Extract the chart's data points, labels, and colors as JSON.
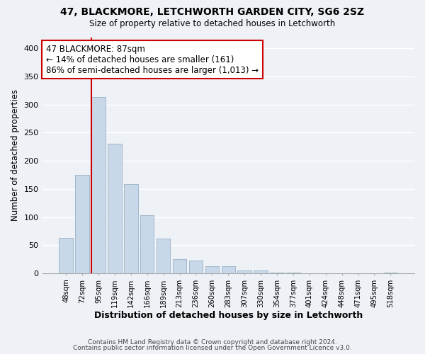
{
  "title": "47, BLACKMORE, LETCHWORTH GARDEN CITY, SG6 2SZ",
  "subtitle": "Size of property relative to detached houses in Letchworth",
  "xlabel": "Distribution of detached houses by size in Letchworth",
  "ylabel": "Number of detached properties",
  "bar_labels": [
    "48sqm",
    "72sqm",
    "95sqm",
    "119sqm",
    "142sqm",
    "166sqm",
    "189sqm",
    "213sqm",
    "236sqm",
    "260sqm",
    "283sqm",
    "307sqm",
    "330sqm",
    "354sqm",
    "377sqm",
    "401sqm",
    "424sqm",
    "448sqm",
    "471sqm",
    "495sqm",
    "518sqm"
  ],
  "bar_values": [
    63,
    175,
    313,
    230,
    158,
    103,
    62,
    25,
    22,
    13,
    13,
    5,
    5,
    1,
    1,
    0,
    0,
    0,
    0,
    0,
    1
  ],
  "bar_color": "#c8d8e8",
  "bar_edge_color": "#a0b8cc",
  "marker_line_color": "#cc0000",
  "annotation_text": "47 BLACKMORE: 87sqm\n← 14% of detached houses are smaller (161)\n86% of semi-detached houses are larger (1,013) →",
  "annotation_bbox_color": "#ffffff",
  "annotation_bbox_edge": "#cc0000",
  "ylim": [
    0,
    420
  ],
  "yticks": [
    0,
    50,
    100,
    150,
    200,
    250,
    300,
    350,
    400
  ],
  "footer_line1": "Contains HM Land Registry data © Crown copyright and database right 2024.",
  "footer_line2": "Contains public sector information licensed under the Open Government Licence v3.0.",
  "background_color": "#eef2f7",
  "grid_color": "#ffffff"
}
